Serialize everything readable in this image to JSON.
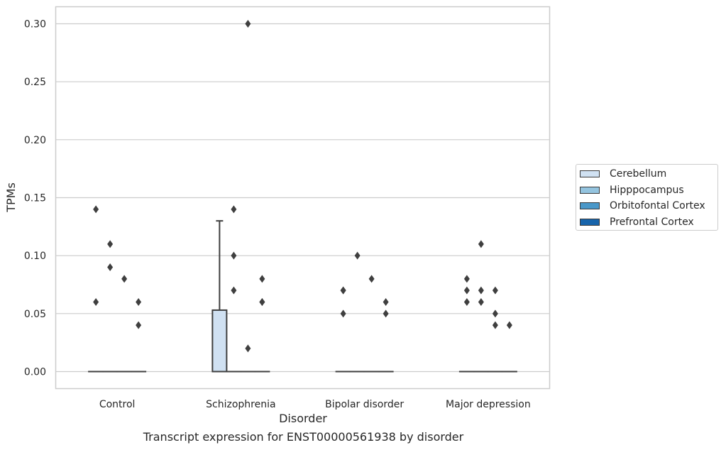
{
  "chart_data": {
    "type": "box",
    "caption": "Transcript expression for ENST00000561938 by disorder",
    "xlabel": "Disorder",
    "ylabel": "TPMs",
    "ylim": [
      -0.015,
      0.315
    ],
    "yticks": [
      "0.00",
      "0.05",
      "0.10",
      "0.15",
      "0.20",
      "0.25",
      "0.30"
    ],
    "grid": "horizontal",
    "legend_placement": "right",
    "categories": [
      "Control",
      "Schizophrenia",
      "Bipolar disorder",
      "Major depression"
    ],
    "series": [
      {
        "name": "Cerebellum",
        "color": "#d0e1f2"
      },
      {
        "name": "Hipppocampus",
        "color": "#94c4df"
      },
      {
        "name": "Orbitofontal Cortex",
        "color": "#4a98c9"
      },
      {
        "name": "Prefrontal Cortex",
        "color": "#1764ab"
      }
    ],
    "boxes": [
      {
        "category": "Control",
        "series": "Cerebellum",
        "q1": 0,
        "median": 0,
        "q3": 0,
        "whisker_low": 0,
        "whisker_high": 0,
        "outliers": [
          0.06,
          0.14
        ]
      },
      {
        "category": "Control",
        "series": "Hipppocampus",
        "q1": 0,
        "median": 0,
        "q3": 0,
        "whisker_low": 0,
        "whisker_high": 0,
        "outliers": [
          0.09,
          0.11
        ]
      },
      {
        "category": "Control",
        "series": "Orbitofontal Cortex",
        "q1": 0,
        "median": 0,
        "q3": 0,
        "whisker_low": 0,
        "whisker_high": 0,
        "outliers": [
          0.08
        ]
      },
      {
        "category": "Control",
        "series": "Prefrontal Cortex",
        "q1": 0,
        "median": 0,
        "q3": 0,
        "whisker_low": 0,
        "whisker_high": 0,
        "outliers": [
          0.04,
          0.06
        ]
      },
      {
        "category": "Schizophrenia",
        "series": "Cerebellum",
        "q1": 0,
        "median": 0,
        "q3": 0.053,
        "whisker_low": 0,
        "whisker_high": 0.13,
        "outliers": []
      },
      {
        "category": "Schizophrenia",
        "series": "Hipppocampus",
        "q1": 0,
        "median": 0,
        "q3": 0,
        "whisker_low": 0,
        "whisker_high": 0,
        "outliers": [
          0.07,
          0.1,
          0.14
        ]
      },
      {
        "category": "Schizophrenia",
        "series": "Orbitofontal Cortex",
        "q1": 0,
        "median": 0,
        "q3": 0,
        "whisker_low": 0,
        "whisker_high": 0,
        "outliers": [
          0.02,
          0.3
        ]
      },
      {
        "category": "Schizophrenia",
        "series": "Prefrontal Cortex",
        "q1": 0,
        "median": 0,
        "q3": 0,
        "whisker_low": 0,
        "whisker_high": 0,
        "outliers": [
          0.06,
          0.06,
          0.08
        ]
      },
      {
        "category": "Bipolar disorder",
        "series": "Cerebellum",
        "q1": 0,
        "median": 0,
        "q3": 0,
        "whisker_low": 0,
        "whisker_high": 0,
        "outliers": [
          0.05,
          0.07,
          0.07
        ]
      },
      {
        "category": "Bipolar disorder",
        "series": "Hipppocampus",
        "q1": 0,
        "median": 0,
        "q3": 0,
        "whisker_low": 0,
        "whisker_high": 0,
        "outliers": [
          0.1
        ]
      },
      {
        "category": "Bipolar disorder",
        "series": "Orbitofontal Cortex",
        "q1": 0,
        "median": 0,
        "q3": 0,
        "whisker_low": 0,
        "whisker_high": 0,
        "outliers": [
          0.08
        ]
      },
      {
        "category": "Bipolar disorder",
        "series": "Prefrontal Cortex",
        "q1": 0,
        "median": 0,
        "q3": 0,
        "whisker_low": 0,
        "whisker_high": 0,
        "outliers": [
          0.05,
          0.06
        ]
      },
      {
        "category": "Major depression",
        "series": "Cerebellum",
        "q1": 0,
        "median": 0,
        "q3": 0,
        "whisker_low": 0,
        "whisker_high": 0,
        "outliers": [
          0.06,
          0.07,
          0.08
        ]
      },
      {
        "category": "Major depression",
        "series": "Hipppocampus",
        "q1": 0,
        "median": 0,
        "q3": 0,
        "whisker_low": 0,
        "whisker_high": 0,
        "outliers": [
          0.06,
          0.07,
          0.11
        ]
      },
      {
        "category": "Major depression",
        "series": "Orbitofontal Cortex",
        "q1": 0,
        "median": 0,
        "q3": 0,
        "whisker_low": 0,
        "whisker_high": 0,
        "outliers": [
          0.04,
          0.05,
          0.07
        ]
      },
      {
        "category": "Major depression",
        "series": "Prefrontal Cortex",
        "q1": 0,
        "median": 0,
        "q3": 0,
        "whisker_low": 0,
        "whisker_high": 0,
        "outliers": [
          0.04
        ]
      }
    ]
  }
}
